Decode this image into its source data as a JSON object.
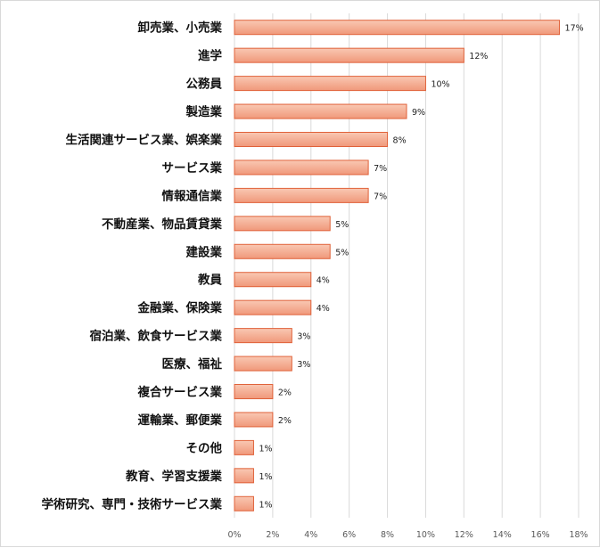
{
  "chart_data": {
    "type": "bar",
    "orientation": "horizontal",
    "categories": [
      "卸売業、小売業",
      "進学",
      "公務員",
      "製造業",
      "生活関連サービス業、娯楽業",
      "サービス業",
      "情報通信業",
      "不動産業、物品賃貸業",
      "建設業",
      "教員",
      "金融業、保険業",
      "宿泊業、飲食サービス業",
      "医療、福祉",
      "複合サービス業",
      "運輸業、郵便業",
      "その他",
      "教育、学習支援業",
      "学術研究、専門・技術サービス業"
    ],
    "values": [
      17,
      12,
      10,
      9,
      8,
      7,
      7,
      5,
      5,
      4,
      4,
      3,
      3,
      2,
      2,
      1,
      1,
      1
    ],
    "data_labels": [
      "17%",
      "12%",
      "10%",
      "9%",
      "8%",
      "7%",
      "7%",
      "5%",
      "5%",
      "4%",
      "4%",
      "3%",
      "3%",
      "2%",
      "2%",
      "1%",
      "1%",
      "1%"
    ],
    "x_ticks": [
      "0%",
      "2%",
      "4%",
      "6%",
      "8%",
      "10%",
      "12%",
      "14%",
      "16%",
      "18%"
    ],
    "xlim": [
      0,
      18
    ],
    "grid": true,
    "title": "",
    "xlabel": "",
    "ylabel": "",
    "colors": {
      "bar_fill_top": "#f9c8b3",
      "bar_fill_bottom": "#f0987a",
      "bar_stroke": "#e0623a",
      "grid": "#d9d9d9"
    }
  }
}
